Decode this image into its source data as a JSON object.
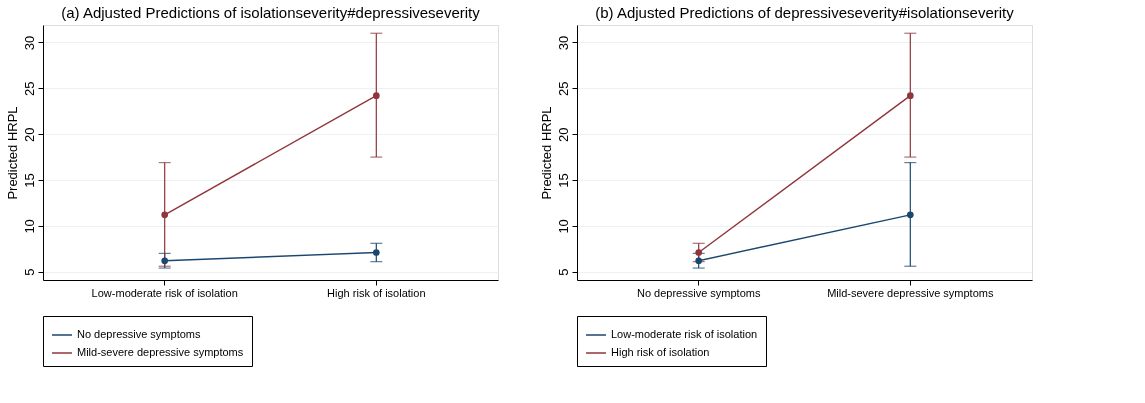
{
  "chart_data": [
    {
      "type": "line",
      "title": "(a) Adjusted Predictions of isolationseverity#depressiveseverity",
      "ylabel": "Predicted HRPL",
      "categories": [
        "Low-moderate risk of isolation",
        "High risk of isolation"
      ],
      "ylim": [
        4.1,
        31.9
      ],
      "yticks": [
        5,
        10,
        15,
        20,
        25,
        30
      ],
      "grid": "y",
      "legend": "bottom",
      "marker": "circle",
      "line_style": "solid",
      "series": [
        {
          "name": "No depressive symptoms",
          "color": "#1a476f",
          "values": [
            6.2,
            7.1
          ],
          "errors": [
            [
              5.4,
              7.0
            ],
            [
              6.1,
              8.1
            ]
          ]
        },
        {
          "name": "Mild-severe depressive symptoms",
          "color": "#90353b",
          "values": [
            11.2,
            24.2
          ],
          "errors": [
            [
              5.6,
              16.9
            ],
            [
              17.5,
              31.0
            ]
          ]
        }
      ]
    },
    {
      "type": "line",
      "title": "(b) Adjusted Predictions of depressiveseverity#isolationseverity",
      "ylabel": "Predicted HRPL",
      "categories": [
        "No depressive symptoms",
        "Mild-severe depressive symptoms"
      ],
      "ylim": [
        4.1,
        31.9
      ],
      "yticks": [
        5,
        10,
        15,
        20,
        25,
        30
      ],
      "grid": "y",
      "legend": "bottom",
      "marker": "circle",
      "line_style": "solid",
      "series": [
        {
          "name": "Low-moderate risk of isolation",
          "color": "#1a476f",
          "values": [
            6.2,
            11.2
          ],
          "errors": [
            [
              5.4,
              7.0
            ],
            [
              5.6,
              16.9
            ]
          ]
        },
        {
          "name": "High risk of isolation",
          "color": "#90353b",
          "values": [
            7.1,
            24.2
          ],
          "errors": [
            [
              6.1,
              8.1
            ],
            [
              17.5,
              31.0
            ]
          ]
        }
      ]
    }
  ]
}
